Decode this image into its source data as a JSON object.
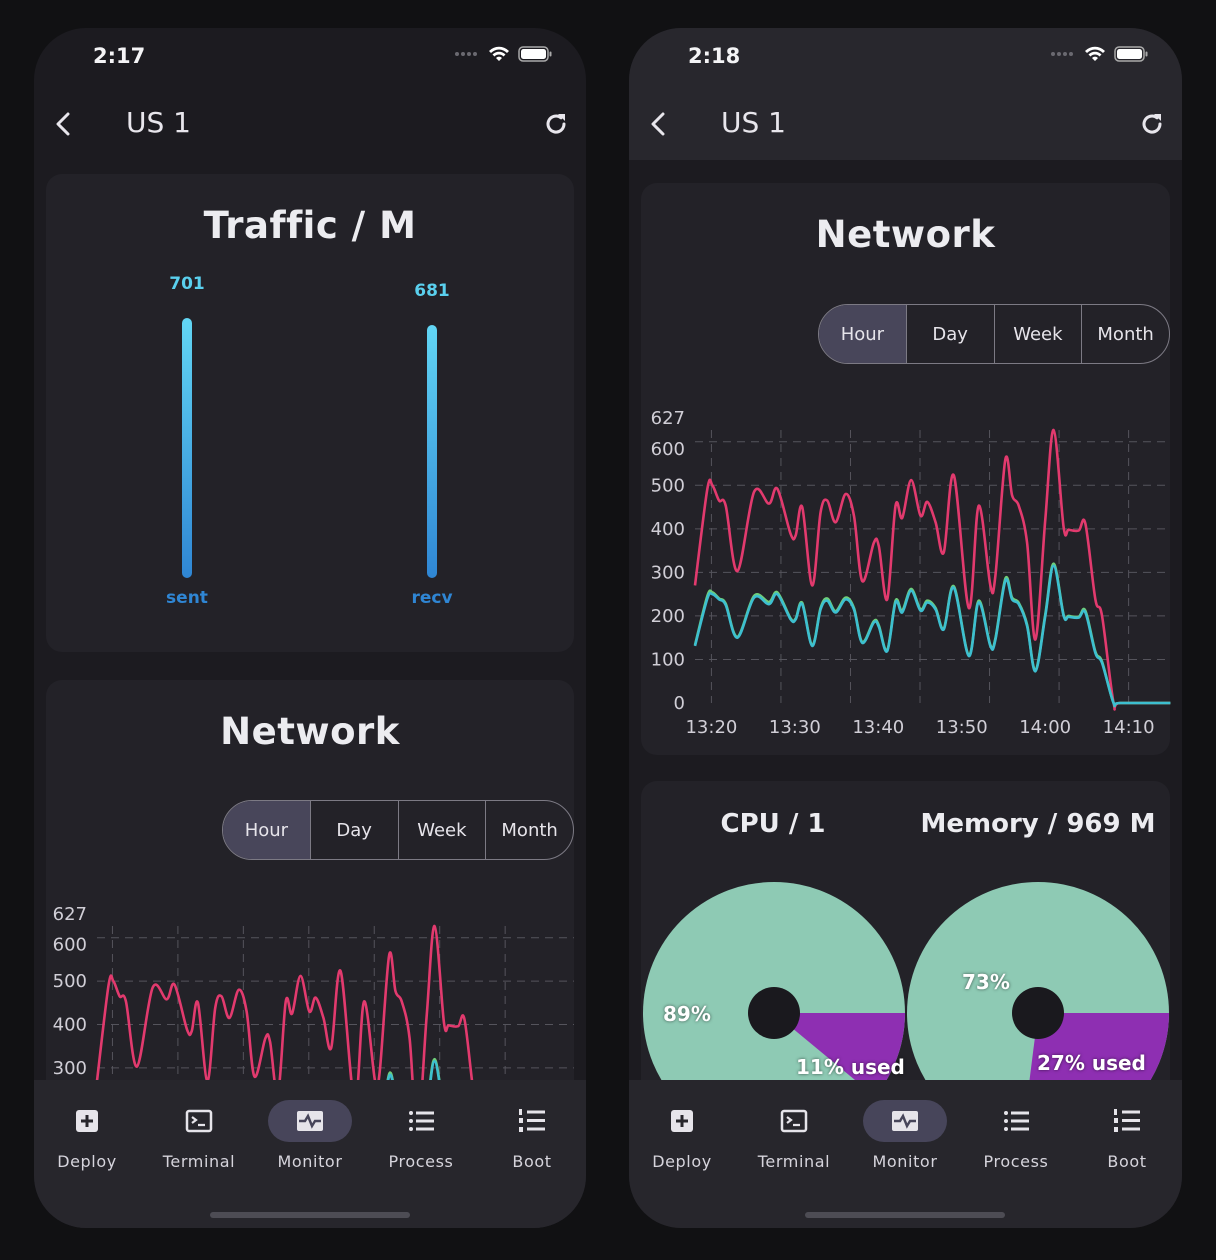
{
  "phones": [
    {
      "status_time": "2:17",
      "header_title": "US 1"
    },
    {
      "status_time": "2:18",
      "header_title": "US 1"
    }
  ],
  "traffic": {
    "title": "Traffic / M",
    "bars": [
      {
        "label": "sent",
        "value": 701
      },
      {
        "label": "recv",
        "value": 681
      }
    ]
  },
  "network": {
    "title": "Network",
    "ranges": [
      "Hour",
      "Day",
      "Week",
      "Month"
    ],
    "selected_range": "Hour"
  },
  "resources": {
    "cpu_title": "CPU / 1",
    "memory_title": "Memory / 969 M",
    "cpu": {
      "free_label": "89%",
      "used_label": "11% used",
      "used_pct": 11
    },
    "memory": {
      "free_label": "73%",
      "used_label": "27% used",
      "used_pct": 27
    }
  },
  "nav": {
    "items": [
      {
        "label": "Deploy",
        "icon": "plus-square-icon"
      },
      {
        "label": "Terminal",
        "icon": "terminal-icon"
      },
      {
        "label": "Monitor",
        "icon": "monitor-icon"
      },
      {
        "label": "Process",
        "icon": "list-icon"
      },
      {
        "label": "Boot",
        "icon": "numbered-list-icon"
      }
    ],
    "selected": "Monitor"
  },
  "colors": {
    "series_red": "#e23a6e",
    "series_green": "#6fcf7a",
    "series_cyan": "#3dbfd0",
    "pie_free": "#8ecab4",
    "pie_used": "#8e2fb2",
    "accent_blue": "#2f86d4"
  },
  "chart_data": {
    "type": "line",
    "title": "Network",
    "x_tick_labels": [
      "13:20",
      "13:30",
      "13:40",
      "13:50",
      "14:00",
      "14:10"
    ],
    "y_tick_labels": [
      "0",
      "100",
      "200",
      "300",
      "400",
      "500",
      "600",
      "627"
    ],
    "ylim": [
      0,
      627
    ],
    "xlim": [
      "13:18:02",
      "14:15:12"
    ],
    "grid": true,
    "x": [
      "13:18:02",
      "13:19:31",
      "13:20:07",
      "13:20:55",
      "13:21:43",
      "13:23:07",
      "13:25:07",
      "13:26:54",
      "13:27:54",
      "13:29:30",
      "13:30:06",
      "13:30:53",
      "13:32:05",
      "13:33:05",
      "13:33:53",
      "13:34:53",
      "13:36:05",
      "13:37:05",
      "13:38:05",
      "13:39:28",
      "13:40:04",
      "13:41:04",
      "13:42:04",
      "13:42:52",
      "13:43:56",
      "13:45:04",
      "13:45:52",
      "13:46:52",
      "13:47:51",
      "13:49:03",
      "13:50:51",
      "13:52:02",
      "13:53:26",
      "13:54:02",
      "13:55:14",
      "13:56:02",
      "13:56:50",
      "13:57:50",
      "13:58:50",
      "14:00:01",
      "14:01:01",
      "14:02:13",
      "14:02:49",
      "14:04:01",
      "14:04:49",
      "14:06:01",
      "14:06:49",
      "14:08:12",
      "14:09:00",
      "14:15:00"
    ],
    "series": [
      {
        "color": "#e23a6e",
        "values": [
          270,
          492,
          500,
          465,
          453,
          303,
          485,
          458,
          492,
          388,
          385,
          450,
          270,
          438,
          465,
          415,
          480,
          430,
          280,
          368,
          360,
          238,
          453,
          425,
          512,
          430,
          462,
          415,
          346,
          523,
          218,
          453,
          270,
          292,
          560,
          477,
          453,
          368,
          146,
          422,
          627,
          403,
          398,
          396,
          412,
          238,
          200,
          0,
          0,
          0
        ]
      },
      {
        "color": "#6fcf7a",
        "values": [
          133,
          246,
          254,
          240,
          228,
          152,
          246,
          232,
          254,
          194,
          194,
          230,
          133,
          218,
          240,
          211,
          242,
          218,
          140,
          188,
          178,
          121,
          235,
          212,
          262,
          215,
          235,
          218,
          171,
          268,
          110,
          235,
          133,
          148,
          286,
          242,
          230,
          180,
          75,
          204,
          320,
          202,
          200,
          198,
          212,
          118,
          95,
          0,
          0,
          0
        ]
      },
      {
        "color": "#3dbfd0",
        "values": [
          131,
          240,
          250,
          238,
          225,
          150,
          242,
          227,
          250,
          192,
          192,
          227,
          131,
          215,
          235,
          208,
          238,
          215,
          138,
          185,
          175,
          119,
          231,
          208,
          258,
          212,
          231,
          215,
          169,
          265,
          108,
          231,
          131,
          145,
          281,
          238,
          227,
          177,
          73,
          200,
          315,
          200,
          198,
          196,
          208,
          115,
          92,
          0,
          0,
          0
        ]
      }
    ]
  }
}
